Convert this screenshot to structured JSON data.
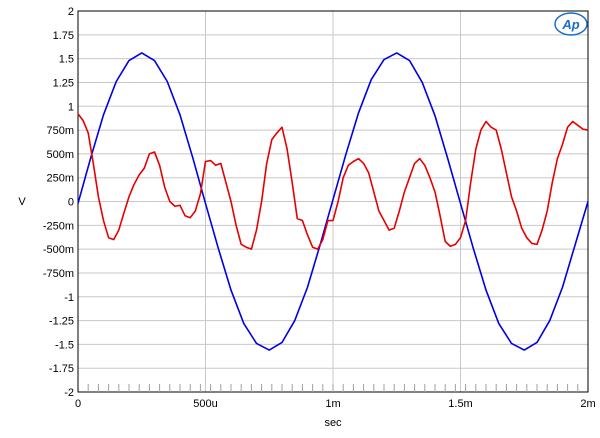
{
  "chart_data": {
    "type": "line",
    "title": "",
    "xlabel": "sec",
    "ylabel": "V",
    "xlim": [
      0,
      0.002
    ],
    "ylim": [
      -2,
      2
    ],
    "grid": true,
    "logo": "Ap",
    "x_ticks": [
      {
        "value": 0,
        "label": "0"
      },
      {
        "value": 0.0005,
        "label": "500u"
      },
      {
        "value": 0.001,
        "label": "1m"
      },
      {
        "value": 0.0015,
        "label": "1.5m"
      },
      {
        "value": 0.002,
        "label": "2m"
      }
    ],
    "y_ticks": [
      {
        "value": 2,
        "label": "2"
      },
      {
        "value": 1.75,
        "label": "1.75"
      },
      {
        "value": 1.5,
        "label": "1.5"
      },
      {
        "value": 1.25,
        "label": "1.25"
      },
      {
        "value": 1,
        "label": "1"
      },
      {
        "value": 0.75,
        "label": "750m"
      },
      {
        "value": 0.5,
        "label": "500m"
      },
      {
        "value": 0.25,
        "label": "250m"
      },
      {
        "value": 0,
        "label": "0"
      },
      {
        "value": -0.25,
        "label": "-250m"
      },
      {
        "value": -0.5,
        "label": "-500m"
      },
      {
        "value": -0.75,
        "label": "-750m"
      },
      {
        "value": -1,
        "label": "-1"
      },
      {
        "value": -1.25,
        "label": "-1.25"
      },
      {
        "value": -1.5,
        "label": "-1.5"
      },
      {
        "value": -1.75,
        "label": "-1.75"
      },
      {
        "value": -2,
        "label": "-2"
      }
    ],
    "series": [
      {
        "color": "#0000e6",
        "x": [
          0,
          5e-05,
          0.0001,
          0.00015,
          0.0002,
          0.00025,
          0.0003,
          0.00035,
          0.0004,
          0.00045,
          0.0005,
          0.00055,
          0.0006,
          0.00065,
          0.0007,
          0.00075,
          0.0008,
          0.00085,
          0.0009,
          0.00095,
          0.001,
          0.00105,
          0.0011,
          0.00115,
          0.0012,
          0.00125,
          0.0013,
          0.00135,
          0.0014,
          0.00145,
          0.0015,
          0.00155,
          0.0016,
          0.00165,
          0.0017,
          0.00175,
          0.0018,
          0.00185,
          0.0019,
          0.00195,
          0.002
        ],
        "y": [
          -0.02,
          0.46,
          0.91,
          1.26,
          1.48,
          1.56,
          1.48,
          1.26,
          0.91,
          0.46,
          -0.02,
          -0.49,
          -0.93,
          -1.28,
          -1.49,
          -1.56,
          -1.48,
          -1.25,
          -0.9,
          -0.45,
          0.02,
          0.49,
          0.93,
          1.28,
          1.49,
          1.56,
          1.48,
          1.25,
          0.9,
          0.45,
          -0.02,
          -0.49,
          -0.93,
          -1.28,
          -1.49,
          -1.56,
          -1.48,
          -1.25,
          -0.9,
          -0.45,
          0.0
        ]
      },
      {
        "color": "#e60000",
        "x": [
          0,
          2e-05,
          4e-05,
          6e-05,
          8e-05,
          0.0001,
          0.00012,
          0.00014,
          0.00016,
          0.00018,
          0.0002,
          0.00022,
          0.00024,
          0.00026,
          0.00028,
          0.0003,
          0.00032,
          0.00034,
          0.00036,
          0.00038,
          0.0004,
          0.00042,
          0.00044,
          0.00046,
          0.00048,
          0.0005,
          0.00052,
          0.00054,
          0.00056,
          0.00058,
          0.0006,
          0.00062,
          0.00064,
          0.00066,
          0.00068,
          0.0007,
          0.00072,
          0.00074,
          0.00076,
          0.00078,
          0.0008,
          0.00082,
          0.00084,
          0.00086,
          0.00088,
          0.0009,
          0.00092,
          0.00094,
          0.00096,
          0.00098,
          0.001,
          0.00102,
          0.00104,
          0.00106,
          0.00108,
          0.0011,
          0.00112,
          0.00114,
          0.00116,
          0.00118,
          0.0012,
          0.00122,
          0.00124,
          0.00126,
          0.00128,
          0.0013,
          0.00132,
          0.00134,
          0.00136,
          0.00138,
          0.0014,
          0.00142,
          0.00144,
          0.00146,
          0.00148,
          0.0015,
          0.00152,
          0.00154,
          0.00156,
          0.00158,
          0.0016,
          0.00162,
          0.00164,
          0.00166,
          0.00168,
          0.0017,
          0.00172,
          0.00174,
          0.00176,
          0.00178,
          0.0018,
          0.00182,
          0.00184,
          0.00186,
          0.00188,
          0.0019,
          0.00192,
          0.00194,
          0.00196,
          0.00198,
          0.002
        ],
        "y": [
          0.92,
          0.85,
          0.72,
          0.4,
          0.05,
          -0.2,
          -0.38,
          -0.4,
          -0.3,
          -0.12,
          0.05,
          0.18,
          0.28,
          0.35,
          0.5,
          0.52,
          0.38,
          0.15,
          0.0,
          -0.05,
          -0.04,
          -0.15,
          -0.17,
          -0.1,
          0.08,
          0.42,
          0.43,
          0.38,
          0.4,
          0.2,
          0.0,
          -0.25,
          -0.45,
          -0.48,
          -0.5,
          -0.3,
          0.0,
          0.4,
          0.65,
          0.72,
          0.78,
          0.55,
          0.2,
          -0.18,
          -0.2,
          -0.35,
          -0.48,
          -0.5,
          -0.4,
          -0.2,
          -0.2,
          0.0,
          0.25,
          0.38,
          0.42,
          0.45,
          0.4,
          0.3,
          0.1,
          -0.1,
          -0.2,
          -0.3,
          -0.28,
          -0.1,
          0.1,
          0.25,
          0.4,
          0.45,
          0.38,
          0.25,
          0.1,
          -0.15,
          -0.42,
          -0.47,
          -0.45,
          -0.38,
          -0.2,
          0.2,
          0.55,
          0.75,
          0.84,
          0.78,
          0.75,
          0.55,
          0.3,
          0.05,
          -0.1,
          -0.28,
          -0.38,
          -0.44,
          -0.45,
          -0.3,
          -0.1,
          0.2,
          0.45,
          0.6,
          0.78,
          0.84,
          0.8,
          0.76,
          0.75
        ]
      }
    ]
  }
}
